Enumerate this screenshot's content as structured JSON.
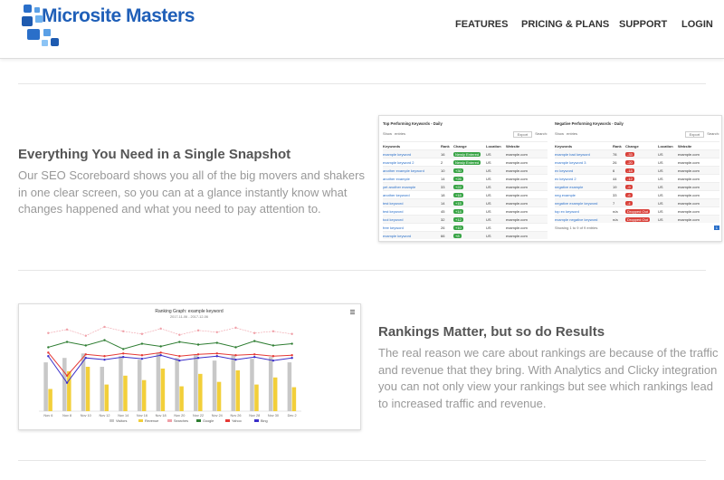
{
  "header": {
    "logo": "Microsite Masters",
    "nav": [
      "FEATURES",
      "PRICING & PLANS",
      "SUPPORT",
      "LOGIN"
    ]
  },
  "sections": [
    {
      "title": "Everything You Need in a Single Snapshot",
      "body": "Our SEO Scoreboard shows you all of the big movers and shakers in one clear screen, so you can at a glance instantly know what changes happened and what you need to pay attention to."
    },
    {
      "title": "Rankings Matter, but so do Results",
      "body": "The real reason we care about rankings are because of the traffic and revenue that they bring. With Analytics and Clicky integration you can not only view your rankings but see which rankings lead to increased traffic and revenue."
    }
  ],
  "snapshot": {
    "top": {
      "title": "Top Performing Keywords - Daily",
      "show": "Show",
      "entries": "entries",
      "export": "Export",
      "search": "Search:",
      "columns": [
        "Keywords",
        "Rank",
        "Change",
        "Location",
        "Website"
      ],
      "rows": [
        [
          "example keyword",
          "16",
          "Newly Entered",
          "US",
          "example.com"
        ],
        [
          "example keyword 2",
          "2",
          "Newly Entered",
          "US",
          "example.com"
        ],
        [
          "another example keyword",
          "10",
          "+30",
          "US",
          "example.com"
        ],
        [
          "another example",
          "14",
          "+26",
          "US",
          "example.com"
        ],
        [
          "yet another example",
          "33",
          "+22",
          "US",
          "example.com"
        ],
        [
          "another keyword",
          "18",
          "+18",
          "US",
          "example.com"
        ],
        [
          "test keyword",
          "14",
          "+15",
          "US",
          "example.com"
        ],
        [
          "test keyword",
          "45",
          "+14",
          "US",
          "example.com"
        ],
        [
          "tool keyword",
          "32",
          "+12",
          "US",
          "example.com"
        ],
        [
          "free keyword",
          "26",
          "+10",
          "US",
          "example.com"
        ],
        [
          "example keyword",
          "66",
          "+8",
          "US",
          "example.com"
        ]
      ]
    },
    "negative": {
      "title": "Negative Performing Keywords - Daily",
      "show": "Show",
      "entries": "entries",
      "export": "Export",
      "search": "Search:",
      "columns": [
        "Keywords",
        "Rank",
        "Change",
        "Location",
        "Website"
      ],
      "rows": [
        [
          "example bad keyword",
          "78",
          "-33",
          "US",
          "example.com"
        ],
        [
          "example keyword 3",
          "26",
          "-20",
          "US",
          "example.com"
        ],
        [
          "ex keyword",
          "6",
          "-18",
          "US",
          "example.com"
        ],
        [
          "ex keyword 2",
          "44",
          "-12",
          "US",
          "example.com"
        ],
        [
          "negative example",
          "19",
          "-9",
          "US",
          "example.com"
        ],
        [
          "neg example",
          "33",
          "-6",
          "US",
          "example.com"
        ],
        [
          "negative example keyword",
          "7",
          "-4",
          "US",
          "example.com"
        ],
        [
          "top ex keyword",
          "n/a",
          "Dropped Out",
          "US",
          "example.com"
        ],
        [
          "example negative keyword",
          "n/a",
          "Dropped Out",
          "US",
          "example.com"
        ]
      ],
      "footer": "Showing 1 to 9 of 9 entries",
      "page": "1"
    }
  },
  "chart_data": {
    "type": "bar",
    "title": "Ranking Graph: example keyword",
    "subtitle": "2017-11-06 - 2017-12-06",
    "categories": [
      "Nov 6",
      "Nov 8",
      "Nov 10",
      "Nov 12",
      "Nov 14",
      "Nov 16",
      "Nov 18",
      "Nov 20",
      "Nov 22",
      "Nov 24",
      "Nov 26",
      "Nov 28",
      "Nov 30",
      "Dec 2"
    ],
    "ylim": [
      0,
      100
    ],
    "series": [
      {
        "name": "Visitors",
        "color": "#c8c8c8",
        "values": [
          55,
          60,
          65,
          50,
          62,
          58,
          66,
          60,
          64,
          57,
          63,
          59,
          61,
          55
        ]
      },
      {
        "name": "Revenue",
        "color": "#f2cf3a",
        "values": [
          25,
          45,
          50,
          30,
          40,
          35,
          48,
          28,
          42,
          33,
          46,
          30,
          38,
          27
        ]
      },
      {
        "name": "Searches",
        "color": "#f0a0a8",
        "values": [
          88,
          92,
          85,
          95,
          90,
          87,
          93,
          86,
          91,
          89,
          94,
          88,
          90,
          87
        ]
      },
      {
        "name": "Google",
        "color": "#2e7d32",
        "values": [
          72,
          78,
          74,
          80,
          70,
          76,
          73,
          78,
          75,
          77,
          72,
          79,
          74,
          76
        ]
      },
      {
        "name": "Yahoo",
        "color": "#e53935",
        "values": [
          66,
          40,
          64,
          62,
          65,
          63,
          66,
          62,
          64,
          65,
          63,
          64,
          62,
          63
        ]
      },
      {
        "name": "Bing",
        "color": "#3b2fc9",
        "values": [
          62,
          32,
          60,
          58,
          61,
          59,
          63,
          57,
          60,
          62,
          58,
          61,
          57,
          60
        ]
      }
    ]
  }
}
